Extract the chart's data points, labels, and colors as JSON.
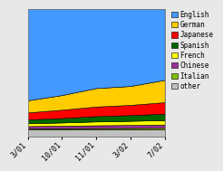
{
  "x_labels": [
    "3/01",
    "10/01",
    "11/01",
    "3/02",
    "7/02"
  ],
  "x_positions": [
    0,
    1,
    2,
    3,
    4
  ],
  "series": {
    "other": [
      0.055,
      0.055,
      0.055,
      0.055,
      0.055
    ],
    "Italian": [
      0.008,
      0.009,
      0.01,
      0.011,
      0.012
    ],
    "Chinese": [
      0.018,
      0.02,
      0.022,
      0.024,
      0.026
    ],
    "French": [
      0.022,
      0.025,
      0.03,
      0.032,
      0.035
    ],
    "Spanish": [
      0.03,
      0.035,
      0.042,
      0.045,
      0.05
    ],
    "Japanese": [
      0.055,
      0.065,
      0.075,
      0.08,
      0.09
    ],
    "German": [
      0.095,
      0.115,
      0.145,
      0.148,
      0.175
    ],
    "English": [
      0.717,
      0.676,
      0.621,
      0.605,
      0.557
    ]
  },
  "colors": {
    "other": "#c0c0c0",
    "Italian": "#80c000",
    "Chinese": "#993399",
    "French": "#ffff00",
    "Spanish": "#006600",
    "Japanese": "#ff0000",
    "German": "#ffcc00",
    "English": "#4499ff"
  },
  "order": [
    "other",
    "Italian",
    "Chinese",
    "French",
    "Spanish",
    "Japanese",
    "German",
    "English"
  ],
  "legend_order": [
    "English",
    "German",
    "Japanese",
    "Spanish",
    "French",
    "Chinese",
    "Italian",
    "other"
  ],
  "bg_color": "#e8e8e8",
  "plot_bg": "#ffffff"
}
